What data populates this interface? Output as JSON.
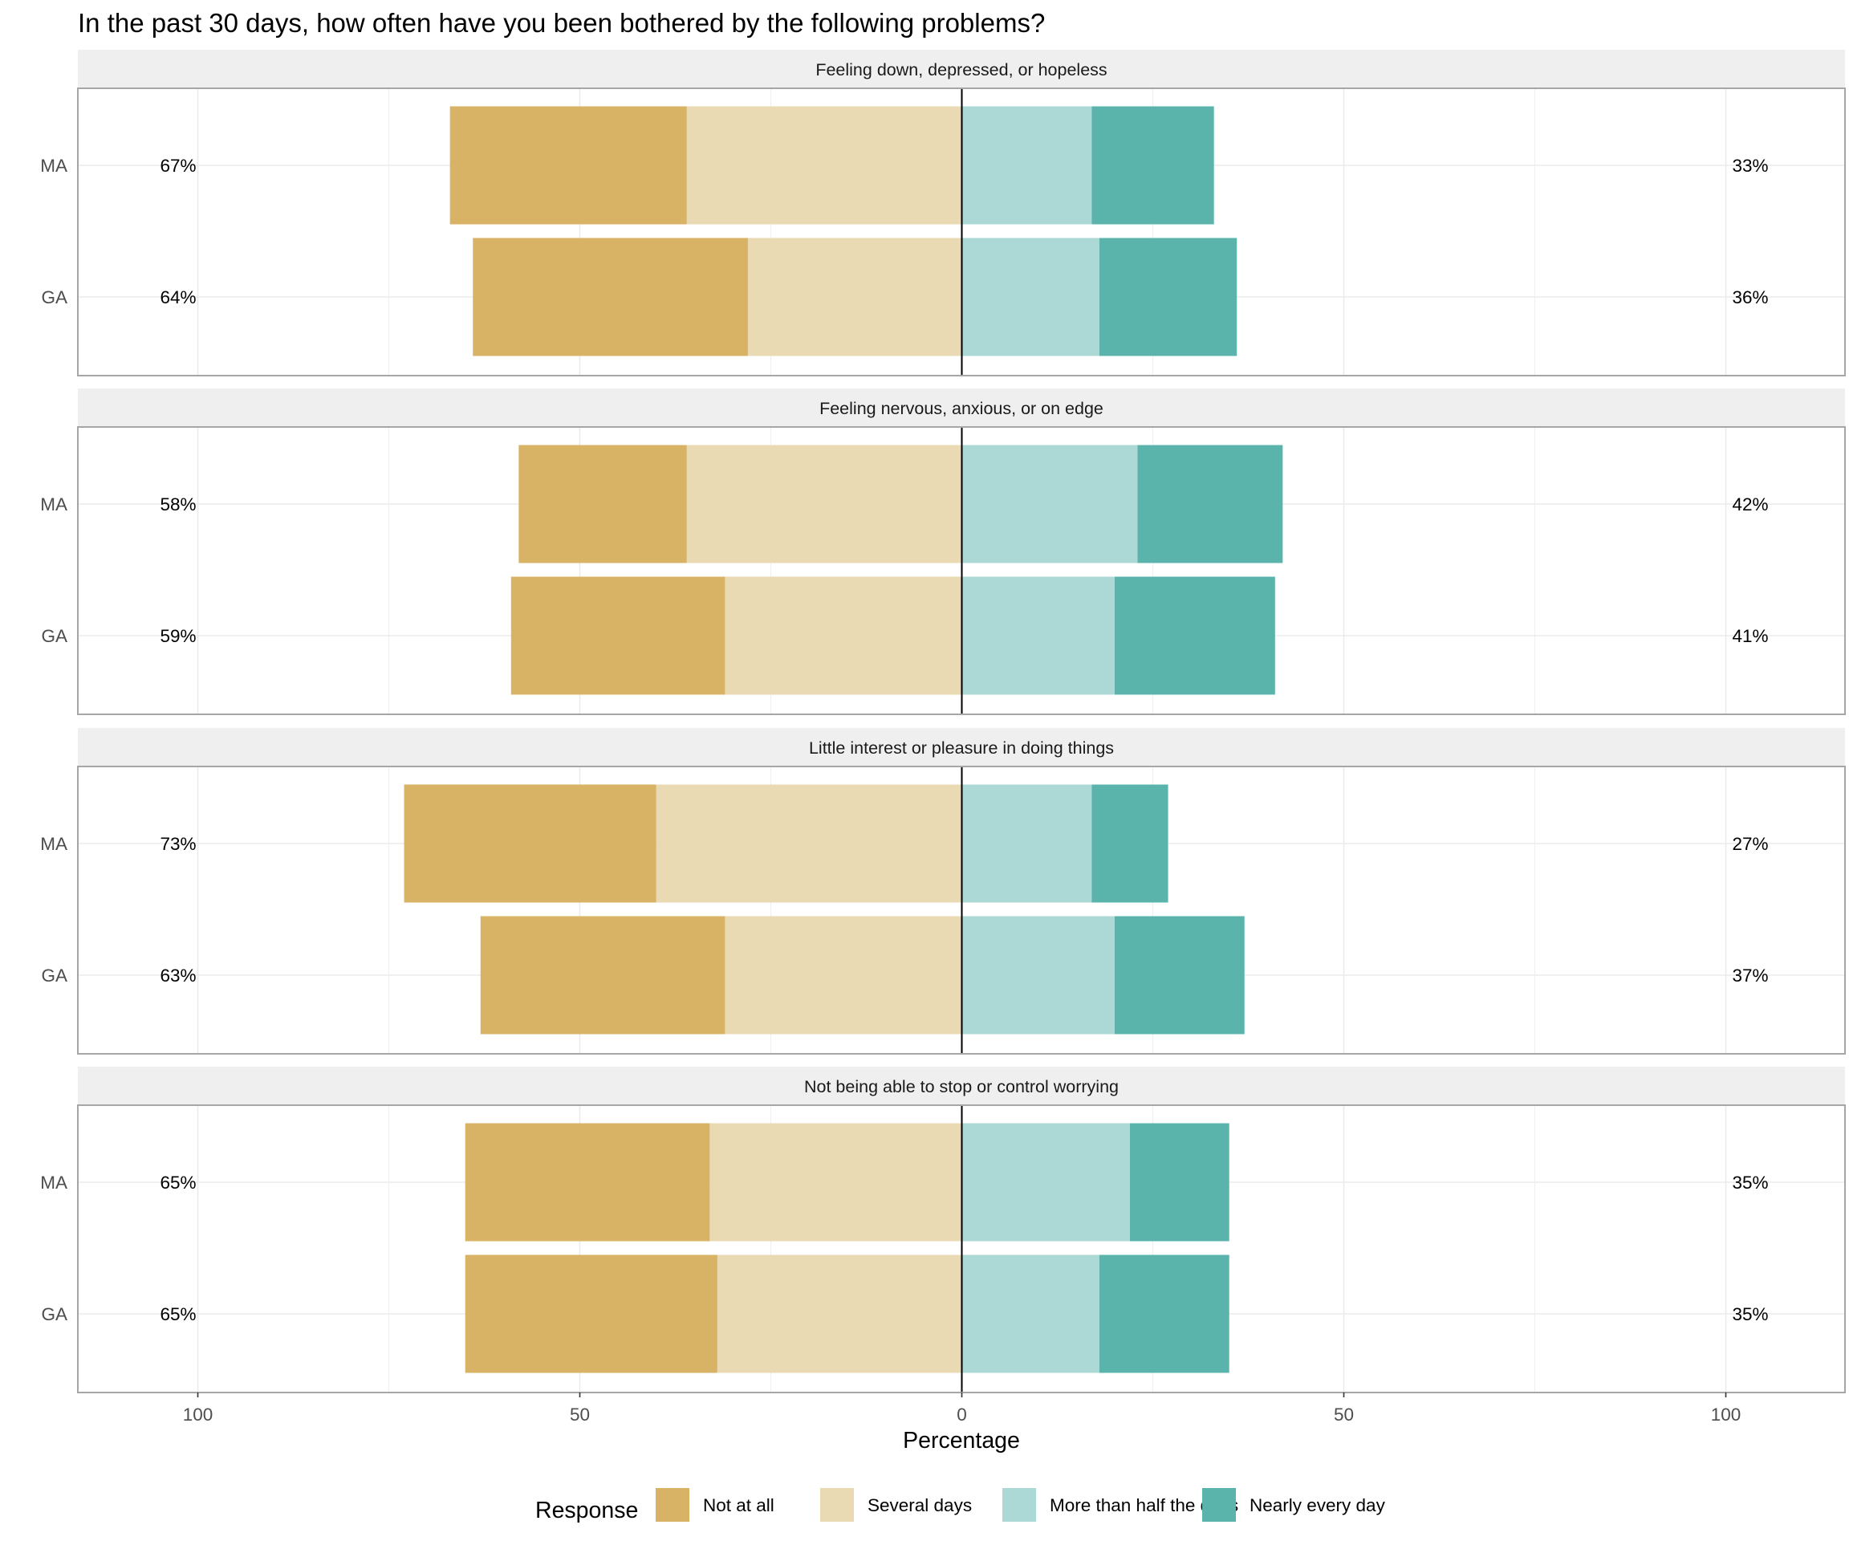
{
  "chart_data": {
    "type": "bar",
    "subtype": "diverging-stacked-horizontal",
    "title": "In the past 30 days, how often have you been bothered by the following problems?",
    "xlabel": "Percentage",
    "ylabel": "",
    "xlim": [
      -115,
      115
    ],
    "x_ticks": [
      -100,
      -50,
      0,
      50,
      100
    ],
    "x_tick_labels": [
      "100",
      "50",
      "0",
      "50",
      "100"
    ],
    "grid": true,
    "legend": {
      "title": "Response",
      "position": "bottom",
      "items": [
        "Not at all",
        "Several days",
        "More than half the days",
        "Nearly every day"
      ]
    },
    "colors": {
      "Not at all": "#d8b365",
      "Several days": "#eadab3",
      "More than half the days": "#acd9d6",
      "Nearly every day": "#5ab4ac"
    },
    "series_order_negative": [
      "Several days",
      "Not at all"
    ],
    "series_order_positive": [
      "More than half the days",
      "Nearly every day"
    ],
    "panels": [
      {
        "label": "Feeling down, depressed, or hopeless",
        "rows": [
          {
            "group": "MA",
            "left_pct": "67%",
            "right_pct": "33%",
            "values": {
              "Not at all": 31,
              "Several days": 36,
              "More than half the days": 17,
              "Nearly every day": 16
            }
          },
          {
            "group": "GA",
            "left_pct": "64%",
            "right_pct": "36%",
            "values": {
              "Not at all": 36,
              "Several days": 28,
              "More than half the days": 18,
              "Nearly every day": 18
            }
          }
        ]
      },
      {
        "label": "Feeling nervous, anxious, or on edge",
        "rows": [
          {
            "group": "MA",
            "left_pct": "58%",
            "right_pct": "42%",
            "values": {
              "Not at all": 22,
              "Several days": 36,
              "More than half the days": 23,
              "Nearly every day": 19
            }
          },
          {
            "group": "GA",
            "left_pct": "59%",
            "right_pct": "41%",
            "values": {
              "Not at all": 28,
              "Several days": 31,
              "More than half the days": 20,
              "Nearly every day": 21
            }
          }
        ]
      },
      {
        "label": "Little interest or pleasure in doing things",
        "rows": [
          {
            "group": "MA",
            "left_pct": "73%",
            "right_pct": "27%",
            "values": {
              "Not at all": 33,
              "Several days": 40,
              "More than half the days": 17,
              "Nearly every day": 10
            }
          },
          {
            "group": "GA",
            "left_pct": "63%",
            "right_pct": "37%",
            "values": {
              "Not at all": 32,
              "Several days": 31,
              "More than half the days": 20,
              "Nearly every day": 17
            }
          }
        ]
      },
      {
        "label": "Not being able to stop or control worrying",
        "rows": [
          {
            "group": "MA",
            "left_pct": "65%",
            "right_pct": "35%",
            "values": {
              "Not at all": 32,
              "Several days": 33,
              "More than half the days": 22,
              "Nearly every day": 13
            }
          },
          {
            "group": "GA",
            "left_pct": "65%",
            "right_pct": "35%",
            "values": {
              "Not at all": 33,
              "Several days": 32,
              "More than half the days": 18,
              "Nearly every day": 17
            }
          }
        ]
      }
    ]
  }
}
